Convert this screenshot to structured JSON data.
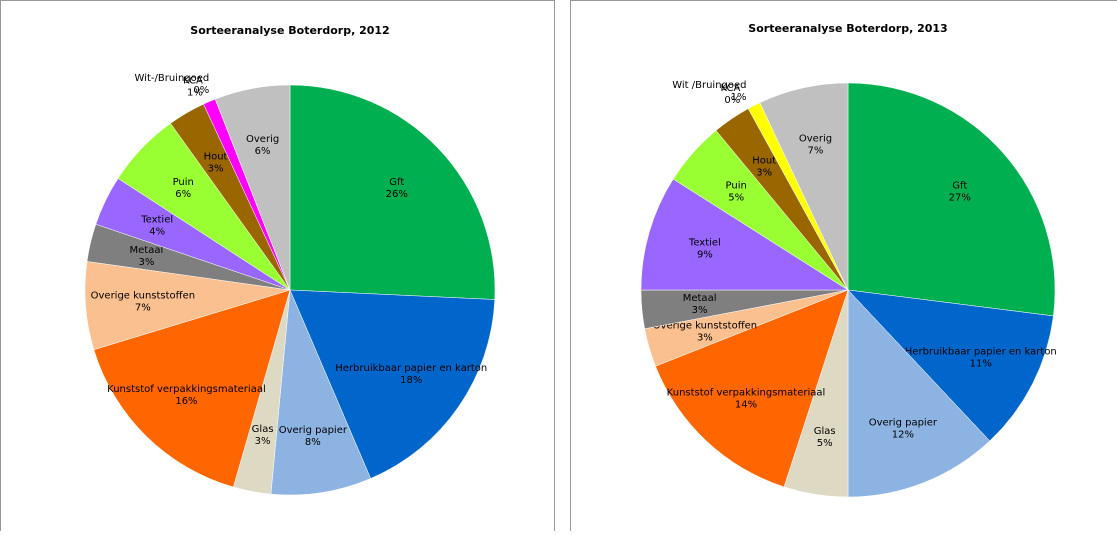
{
  "chart_data": [
    {
      "type": "pie",
      "title": "Sorteeranalyse Boterdorp, 2012",
      "categories": [
        "Gft",
        "Herbruikbaar papier en karton",
        "Overig papier",
        "Glas",
        "Kunststof verpakkingsmateriaal",
        "Overige kunststoffen",
        "Metaal",
        "Textiel",
        "Puin",
        "Hout",
        "KCA",
        "Wit-/Bruingoed",
        "Overig"
      ],
      "values": [
        26,
        18,
        8,
        3,
        16,
        7,
        3,
        4,
        6,
        3,
        1,
        0,
        6
      ],
      "value_labels": [
        "26%",
        "18%",
        "8%",
        "3%",
        "16%",
        "7%",
        "3%",
        "4%",
        "6%",
        "3%",
        "1%",
        "0%",
        "6%"
      ],
      "colors": [
        "#00b050",
        "#0066cc",
        "#8db3e2",
        "#ddd9c3",
        "#ff6600",
        "#fac090",
        "#7f7f7f",
        "#9966ff",
        "#99ff33",
        "#996600",
        "#ff00ff",
        "#ffff00",
        "#c0c0c0"
      ]
    },
    {
      "type": "pie",
      "title": "Sorteeranalyse Boterdorp, 2013",
      "categories": [
        "Gft",
        "Herbruikbaar papier en karton",
        "Overig papier",
        "Glas",
        "Kunststof verpakkingsmateriaal",
        "Overige kunststoffen",
        "Metaal",
        "Textiel",
        "Puin",
        "Hout",
        "KCA",
        "Wit /Bruingoed",
        "Overig"
      ],
      "values": [
        27,
        11,
        12,
        5,
        14,
        3,
        3,
        9,
        5,
        3,
        0,
        1,
        7
      ],
      "value_labels": [
        "27%",
        "11%",
        "12%",
        "5%",
        "14%",
        "3%",
        "3%",
        "9%",
        "5%",
        "3%",
        "0%",
        "1%",
        "7%"
      ],
      "colors": [
        "#00b050",
        "#0066cc",
        "#8db3e2",
        "#ddd9c3",
        "#ff6600",
        "#fac090",
        "#7f7f7f",
        "#9966ff",
        "#99ff33",
        "#996600",
        "#ff00ff",
        "#ffff00",
        "#c0c0c0"
      ]
    }
  ]
}
